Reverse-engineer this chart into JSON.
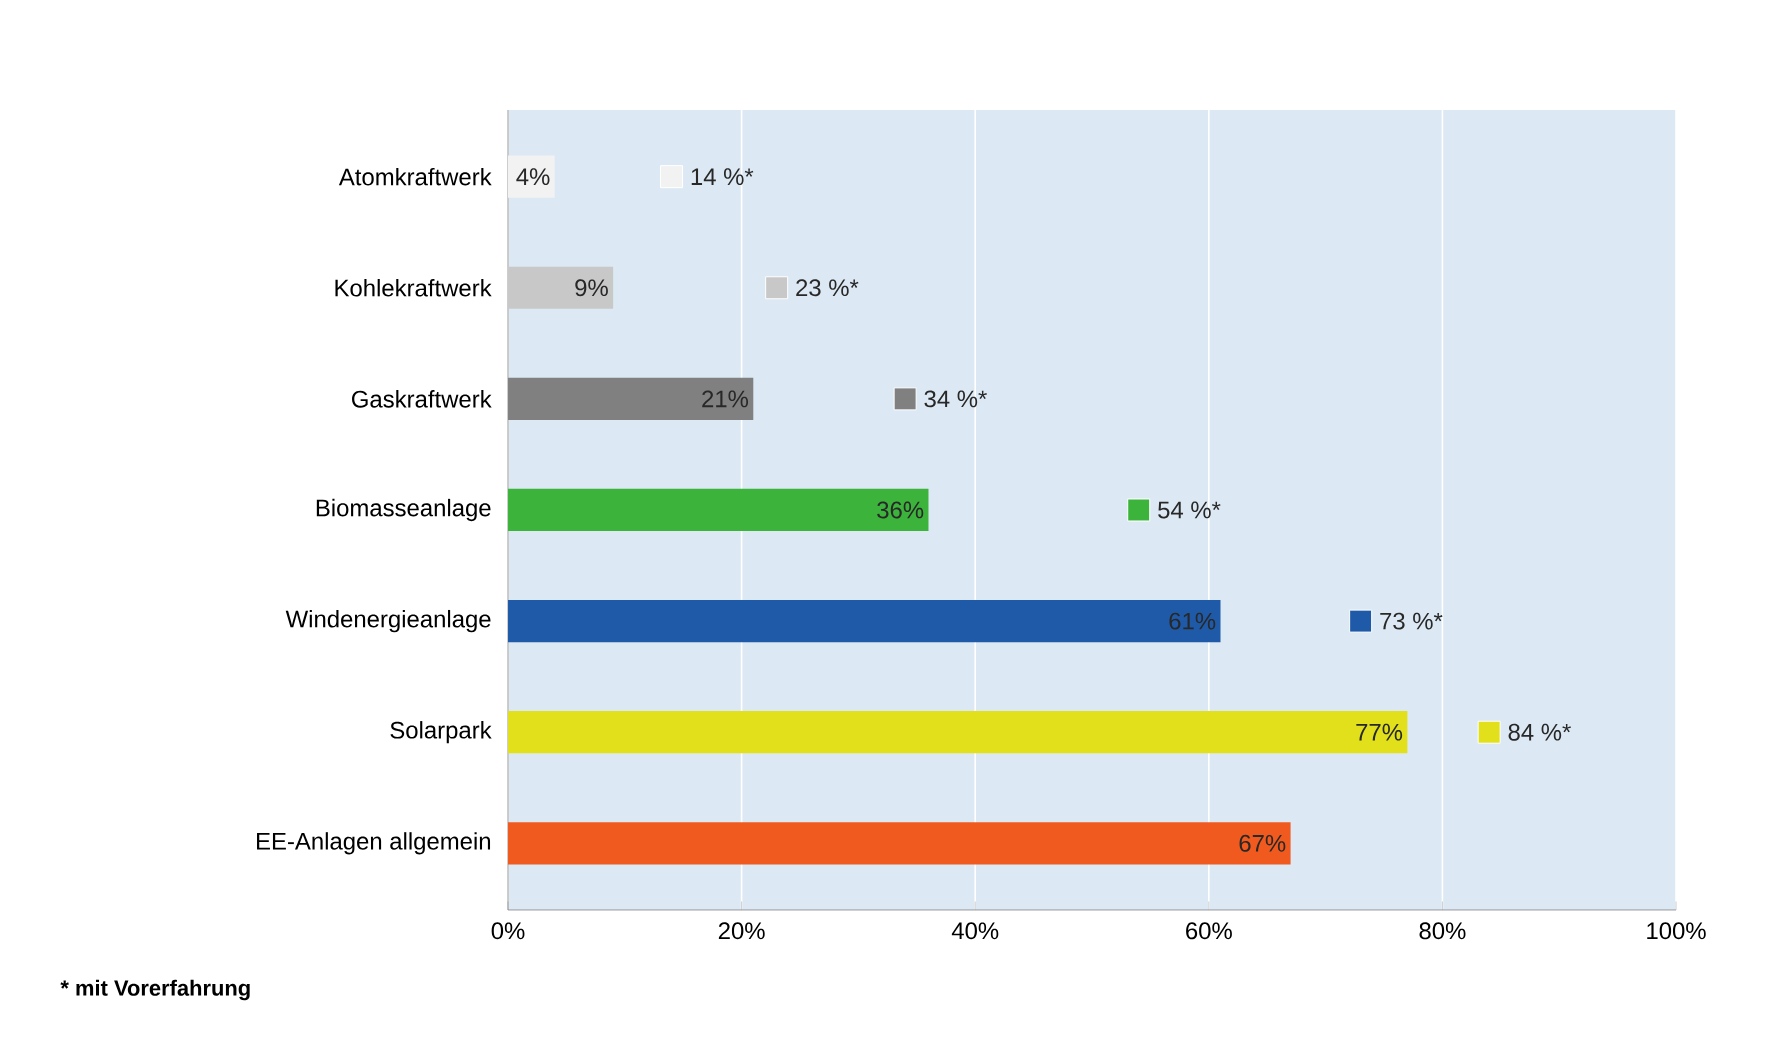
{
  "chart_data": {
    "type": "bar",
    "orientation": "horizontal",
    "categories": [
      "Atomkraftwerk",
      "Kohlekraftwerk",
      "Gaskraftwerk",
      "Biomasseanlage",
      "Windenergieanlage",
      "Solarpark",
      "EE-Anlagen allgemein"
    ],
    "series": [
      {
        "colors": [
          "#f2f2f2",
          "#c8c8c8",
          "#808080",
          "#3cb43c",
          "#1f5aa8",
          "#e2e01a",
          "#f05a1e"
        ],
        "values": [
          4,
          9,
          21,
          36,
          61,
          77,
          67
        ],
        "value_labels": [
          "4%",
          "9%",
          "21%",
          "36%",
          "61%",
          "77%",
          "67%"
        ]
      },
      {
        "type": "scatter",
        "marker": "square",
        "colors": [
          "#f2f2f2",
          "#c8c8c8",
          "#808080",
          "#3cb43c",
          "#1f5aa8",
          "#e2e01a",
          "#f05a1e"
        ],
        "values": [
          14,
          23,
          34,
          54,
          73,
          84,
          null
        ],
        "value_labels": [
          "14 %*",
          "23 %*",
          "34 %*",
          "54 %*",
          "73 %*",
          "84 %*",
          null
        ]
      }
    ],
    "xlim": [
      0,
      100
    ],
    "xticks": [
      {
        "value": 0,
        "label": "0%"
      },
      {
        "value": 20,
        "label": "20%"
      },
      {
        "value": 40,
        "label": "40%"
      },
      {
        "value": 60,
        "label": "60%"
      },
      {
        "value": 80,
        "label": "80%"
      },
      {
        "value": 100,
        "label": "100%"
      }
    ],
    "grid": "x",
    "annotations": [
      "* mit Vorerfahrung"
    ]
  }
}
